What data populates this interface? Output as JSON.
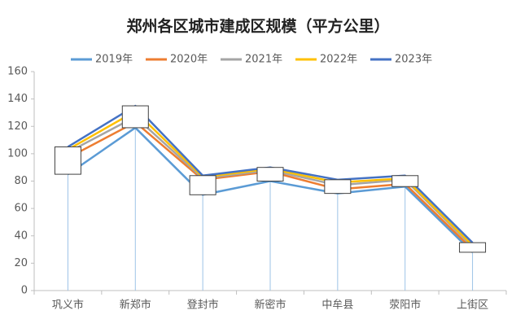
{
  "chart_data": {
    "type": "line",
    "title": "郑州各区城市建成区规模（平方公里）",
    "categories": [
      "巩义市",
      "新郑市",
      "登封市",
      "新密市",
      "中牟县",
      "荥阳市",
      "上街区"
    ],
    "series": [
      {
        "name": "2019年",
        "color": "#5b9bd5",
        "values": [
          85,
          119,
          70,
          80,
          71,
          76,
          28
        ]
      },
      {
        "name": "2020年",
        "color": "#ed7d31",
        "values": [
          97,
          123,
          81,
          87,
          74,
          78,
          30
        ]
      },
      {
        "name": "2021年",
        "color": "#a5a5a5",
        "values": [
          101,
          127,
          82,
          88,
          77,
          81,
          32
        ]
      },
      {
        "name": "2022年",
        "color": "#ffc000",
        "values": [
          103,
          131,
          83,
          89,
          79,
          82,
          33
        ]
      },
      {
        "name": "2023年",
        "color": "#4472c4",
        "values": [
          105,
          135,
          84,
          90,
          81,
          84,
          35
        ]
      }
    ],
    "ylim": [
      0,
      160
    ],
    "yticks": [
      0,
      20,
      40,
      60,
      80,
      100,
      120,
      140,
      160
    ],
    "legend": "top"
  }
}
